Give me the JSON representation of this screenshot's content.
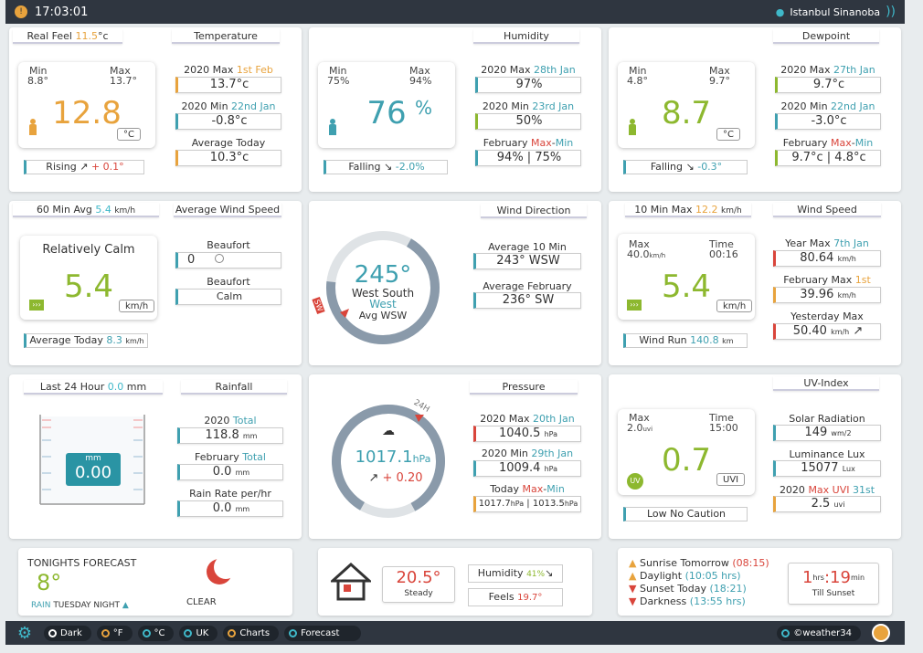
{
  "topbar": {
    "time": "17:03:01",
    "location": "Istanbul Sinanoba"
  },
  "temp": {
    "hdr_realfeel_label": "Real Feel",
    "hdr_realfeel_val": "11.5",
    "hdr_realfeel_unit": "°c",
    "hdr": "Temperature",
    "min_label": "Min",
    "min": "8.8°",
    "max_label": "Max",
    "max": "13.7°",
    "value": "12.8",
    "unit": "°C",
    "trend_label": "Rising",
    "trend_val": "+ 0.1°",
    "year_max_label": "2020 Max",
    "year_max_date": "1st Feb",
    "year_max": "13.7°c",
    "year_min_label": "2020 Min",
    "year_min_date": "22nd Jan",
    "year_min": "-0.8°c",
    "avg_label": "Average Today",
    "avg": "10.3°c"
  },
  "humidity": {
    "hdr": "Humidity",
    "min_label": "Min",
    "min": "75%",
    "max_label": "Max",
    "max": "94%",
    "value": "76",
    "unit": "%",
    "trend_label": "Falling",
    "trend_val": "-2.0%",
    "year_max_label": "2020 Max",
    "year_max_date": "28th Jan",
    "year_max": "97%",
    "year_min_label": "2020 Min",
    "year_min_date": "23rd Jan",
    "year_min": "50%",
    "month_label": "February",
    "month_max": "Max",
    "month_min": "Min",
    "month_val": "94% | 75%"
  },
  "dewpoint": {
    "hdr": "Dewpoint",
    "min_label": "Min",
    "min": "4.8°",
    "max_label": "Max",
    "max": "9.7°",
    "value": "8.7",
    "unit": "°C",
    "trend_label": "Falling",
    "trend_val": "-0.3°",
    "year_max_label": "2020 Max",
    "year_max_date": "27th Jan",
    "year_max": "9.7°c",
    "year_min_label": "2020 Min",
    "year_min_date": "22nd Jan",
    "year_min": "-3.0°c",
    "month_label": "February",
    "month_max": "Max",
    "month_min": "Min",
    "month_val": "9.7°c | 4.8°c"
  },
  "windavg": {
    "hdr_left_label": "60 Min Avg",
    "hdr_left_val": "5.4",
    "hdr_left_unit": "km/h",
    "hdr": "Average Wind Speed",
    "desc": "Relatively Calm",
    "value": "5.4",
    "unit": "km/h",
    "beaufort_label": "Beaufort",
    "beaufort_val": "0",
    "beaufort2_label": "Beaufort",
    "beaufort2_val": "Calm",
    "avg_today_label": "Average Today",
    "avg_today_val": "8.3",
    "avg_today_unit": "km/h"
  },
  "winddir": {
    "hdr": "Wind Direction",
    "deg": "245°",
    "name1": "West South",
    "name2": "West",
    "avg": "Avg WSW",
    "avg10_label": "Average 10 Min",
    "avg10": "243°  WSW",
    "avgmonth_label": "Average February",
    "avgmonth": "236°  SW",
    "marker": "SW"
  },
  "windspeed": {
    "hdr_left_label": "10 Min Max",
    "hdr_left_val": "12.2",
    "hdr_left_unit": "km/h",
    "hdr": "Wind Speed",
    "max_label": "Max",
    "max": "40.0",
    "max_unit": "km/h",
    "time_label": "Time",
    "time": "00:16",
    "value": "5.4",
    "unit": "km/h",
    "run_label": "Wind Run",
    "run_val": "140.8",
    "run_unit": "km",
    "year_max_label": "Year Max",
    "year_max_date": "7th Jan",
    "year_max": "80.64",
    "year_max_unit": "km/h",
    "month_max_label": "February Max",
    "month_max_date": "1st Feb",
    "month_max": "39.96",
    "month_max_unit": "km/h",
    "yesterday_label": "Yesterday Max",
    "yesterday": "50.40",
    "yesterday_unit": "km/h"
  },
  "rain": {
    "hdr_left_label": "Last 24 Hour",
    "hdr_left_val": "0.0",
    "hdr_left_unit": "mm",
    "hdr": "Rainfall",
    "unit": "mm",
    "value": "0.00",
    "year_label": "2020",
    "year_total": "Total",
    "year": "118.8",
    "year_unit": "mm",
    "month_label": "February",
    "month_total": "Total",
    "month": "0.0",
    "month_unit": "mm",
    "rate_label": "Rain Rate per/hr",
    "rate": "0.0",
    "rate_unit": "mm"
  },
  "pressure": {
    "hdr": "Pressure",
    "value": "1017.1",
    "unit": "hPa",
    "trend": "+ 0.20",
    "marker": "24H",
    "year_max_label": "2020 Max",
    "year_max_date": "20th Jan",
    "year_max": "1040.5",
    "year_min_label": "2020 Min",
    "year_min_date": "29th Jan",
    "year_min": "1009.4",
    "today_label": "Today",
    "today_max": "Max",
    "today_min": "Min",
    "today_val_a": "1017.7",
    "today_val_b": "1013.5",
    "hpa": "hPa"
  },
  "uv": {
    "hdr": "UV-Index",
    "max_label": "Max",
    "max": "2.0",
    "max_unit": "uvi",
    "time_label": "Time",
    "time": "15:00",
    "value": "0.7",
    "unit": "UVI",
    "badge": "UV",
    "caution": "Low No Caution",
    "solar_label": "Solar Radiation",
    "solar": "149",
    "solar_unit": "wm/2",
    "lux_label": "Luminance Lux",
    "lux": "15077",
    "lux_unit": "Lux",
    "year_label": "2020",
    "year_max": "Max UVI",
    "year_date": "31st Jan",
    "year_val": "2.5",
    "year_unit": "uvi"
  },
  "forecast": {
    "title": "TONIGHTS FORECAST",
    "temp": "8°",
    "desc_a": "RAIN",
    "desc_b": "TUESDAY NIGHT",
    "cond": "CLEAR"
  },
  "indoor": {
    "temp": "20.5°",
    "state": "Steady",
    "hum_label": "Humidity",
    "hum": "41%",
    "feels_label": "Feels",
    "feels": "19.7°"
  },
  "sun": {
    "sunrise_label": "Sunrise Tomorrow",
    "sunrise": "(08:15)",
    "daylight_label": "Daylight",
    "daylight": "(10:05 hrs)",
    "sunset_label": "Sunset Today",
    "sunset": "(18:21)",
    "dark_label": "Darkness",
    "dark": "(13:55 hrs)",
    "till_h": "1",
    "till_h_unit": "hrs",
    "till_m": "19",
    "till_m_unit": "min",
    "till_label": "Till Sunset"
  },
  "bottombar": {
    "dark": "Dark",
    "f": "°F",
    "c": "°C",
    "uk": "UK",
    "charts": "Charts",
    "forecast": "Forecast",
    "brand": "©weather34"
  },
  "colors": {
    "orange": "#e8a33d",
    "teal": "#3fa0b0",
    "green": "#8db82f",
    "red": "#d9453b",
    "dark": "#2f3640"
  }
}
